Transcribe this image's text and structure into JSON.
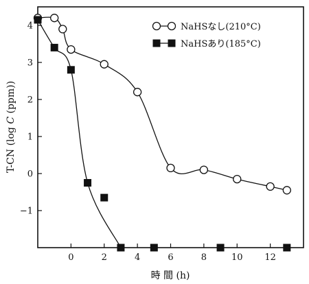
{
  "chart_data": {
    "type": "line",
    "xlabel": "時 間 (h)",
    "ylabel_prefix": "T-CN (log ",
    "ylabel_var": "C",
    "ylabel_suffix": " (ppm))",
    "xlim": [
      -2,
      14
    ],
    "ylim": [
      -2,
      4.5
    ],
    "x_ticks": [
      0,
      2,
      4,
      6,
      8,
      10,
      12
    ],
    "y_ticks": [
      -1,
      0,
      1,
      2,
      3,
      4
    ],
    "grid": false,
    "legend_position": "top-right",
    "series": [
      {
        "name": "NaHSなし(210°C)",
        "marker": "open-circle",
        "x": [
          -2,
          -1,
          -0.5,
          0,
          2,
          4,
          6,
          8,
          10,
          12,
          13
        ],
        "y": [
          4.2,
          4.2,
          3.9,
          3.35,
          2.95,
          2.2,
          0.15,
          0.1,
          -0.15,
          -0.35,
          -0.45
        ]
      },
      {
        "name": "NaHSあり(185°C)",
        "marker": "filled-square",
        "x": [
          -2,
          -1,
          0,
          1,
          2,
          3,
          5,
          9,
          13
        ],
        "y": [
          4.15,
          3.4,
          2.8,
          -0.25,
          -0.65,
          -2,
          -2,
          -2,
          -2
        ]
      }
    ]
  }
}
